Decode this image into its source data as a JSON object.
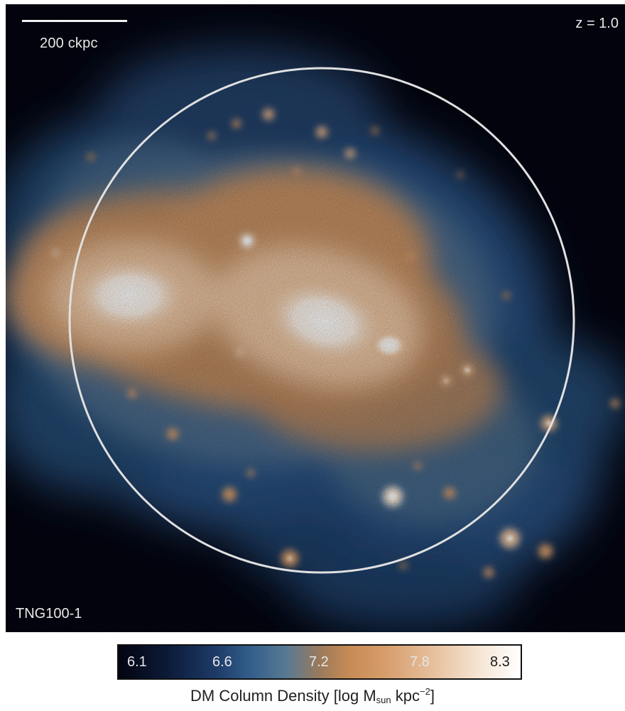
{
  "scale_bar": {
    "label": "200 ckpc"
  },
  "redshift": {
    "label": "z = 1.0"
  },
  "simulation": {
    "label": "TNG100-1"
  },
  "colorbar": {
    "ticks": [
      "6.1",
      "6.6",
      "7.2",
      "7.8",
      "8.3"
    ],
    "title_main": "DM Column Density [log M",
    "title_sub": "sun",
    "title_mid": " kpc",
    "title_sup": "−2",
    "title_end": "]"
  },
  "colors": {
    "background": "#03040f",
    "low": "#1d3a66",
    "mid": "#c58a55",
    "high": "#ffffff",
    "circle": "#e0e0e0"
  }
}
